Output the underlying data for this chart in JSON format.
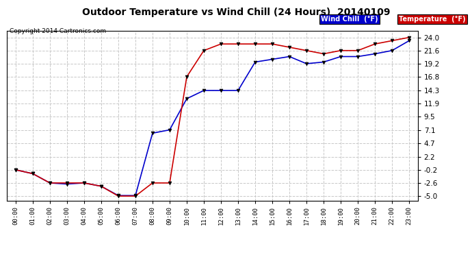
{
  "title": "Outdoor Temperature vs Wind Chill (24 Hours)  20140109",
  "copyright": "Copyright 2014 Cartronics.com",
  "background_color": "#ffffff",
  "plot_bg_color": "#ffffff",
  "grid_color": "#c8c8c8",
  "hours": [
    "00:00",
    "01:00",
    "02:00",
    "03:00",
    "04:00",
    "05:00",
    "06:00",
    "07:00",
    "08:00",
    "09:00",
    "10:00",
    "11:00",
    "12:00",
    "13:00",
    "14:00",
    "15:00",
    "16:00",
    "17:00",
    "18:00",
    "19:00",
    "20:00",
    "21:00",
    "22:00",
    "23:00"
  ],
  "temperature": [
    -0.2,
    -0.9,
    -2.6,
    -2.6,
    -2.6,
    -3.2,
    -5.0,
    -5.0,
    -2.6,
    -2.6,
    16.8,
    21.6,
    22.8,
    22.8,
    22.8,
    22.8,
    22.2,
    21.6,
    21.0,
    21.6,
    21.6,
    22.8,
    23.4,
    24.0
  ],
  "wind_chill": [
    -0.2,
    -0.9,
    -2.6,
    -2.8,
    -2.6,
    -3.2,
    -4.9,
    -4.9,
    6.5,
    7.1,
    12.8,
    14.3,
    14.3,
    14.3,
    19.5,
    20.0,
    20.5,
    19.2,
    19.5,
    20.5,
    20.5,
    21.0,
    21.6,
    23.4
  ],
  "temp_color": "#cc0000",
  "wind_chill_color": "#0000cc",
  "yticks": [
    -5.0,
    -2.6,
    -0.2,
    2.2,
    4.7,
    7.1,
    9.5,
    11.9,
    14.3,
    16.8,
    19.2,
    21.6,
    24.0
  ],
  "ylim": [
    -5.8,
    25.2
  ],
  "legend_wind_label": "Wind Chill  (°F)",
  "legend_temp_label": "Temperature  (°F)"
}
